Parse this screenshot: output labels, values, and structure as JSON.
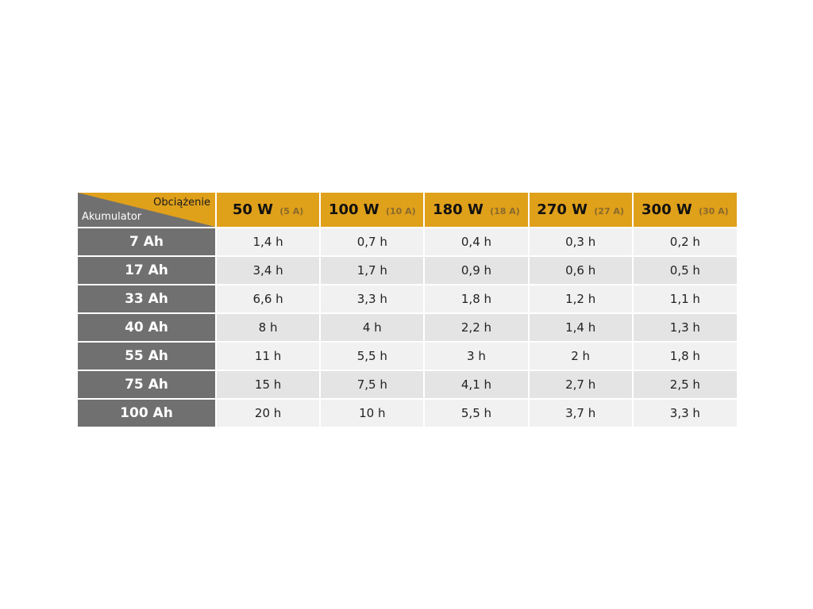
{
  "table": {
    "corner_top": "Obciążenie",
    "corner_bottom": "Akumulator",
    "columns": [
      {
        "power": "50 W",
        "current": "(5 A)"
      },
      {
        "power": "100 W",
        "current": "(10 A)"
      },
      {
        "power": "180 W",
        "current": "(18 A)"
      },
      {
        "power": "270 W",
        "current": "(27 A)"
      },
      {
        "power": "300 W",
        "current": "(30 A)"
      }
    ],
    "rows": [
      {
        "battery": "7 Ah",
        "values": [
          "1,4 h",
          "0,7 h",
          "0,4 h",
          "0,3 h",
          "0,2 h"
        ]
      },
      {
        "battery": "17 Ah",
        "values": [
          "3,4 h",
          "1,7 h",
          "0,9 h",
          "0,6 h",
          "0,5 h"
        ]
      },
      {
        "battery": "33 Ah",
        "values": [
          "6,6 h",
          "3,3 h",
          "1,8 h",
          "1,2 h",
          "1,1 h"
        ]
      },
      {
        "battery": "40 Ah",
        "values": [
          "8 h",
          "4 h",
          "2,2 h",
          "1,4 h",
          "1,3 h"
        ]
      },
      {
        "battery": "55 Ah",
        "values": [
          "11 h",
          "5,5 h",
          "3 h",
          "2 h",
          "1,8 h"
        ]
      },
      {
        "battery": "75 Ah",
        "values": [
          "15 h",
          "7,5 h",
          "4,1 h",
          "2,7 h",
          "2,5 h"
        ]
      },
      {
        "battery": "100 Ah",
        "values": [
          "20 h",
          "10 h",
          "5,5 h",
          "3,7 h",
          "3,3 h"
        ]
      }
    ]
  },
  "colors": {
    "header_accent": "#dfa01a",
    "row_header": "#707070",
    "row_light": "#f1f1f1",
    "row_dark": "#e4e4e4"
  }
}
